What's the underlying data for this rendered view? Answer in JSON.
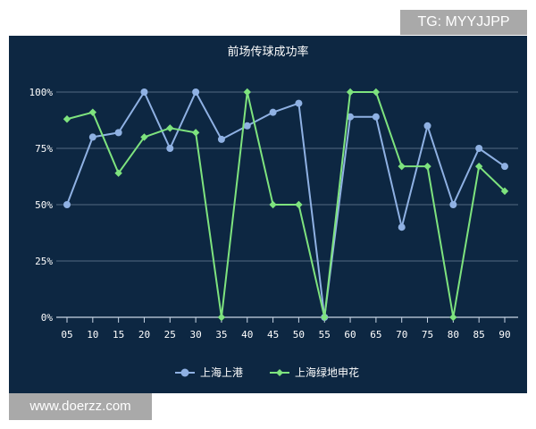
{
  "watermarks": {
    "top_right": "TG: MYYJJPP",
    "bottom_left": "www.doerzz.com"
  },
  "chart_data": {
    "type": "line",
    "title": "前场传球成功率",
    "xlabel": "",
    "ylabel": "",
    "x": [
      "05",
      "10",
      "15",
      "20",
      "25",
      "30",
      "35",
      "40",
      "45",
      "50",
      "55",
      "60",
      "65",
      "70",
      "75",
      "80",
      "85",
      "90"
    ],
    "yticks": [
      "0%",
      "25%",
      "50%",
      "75%",
      "100%"
    ],
    "ylim": [
      0,
      100
    ],
    "grid": true,
    "legend": "bottom-center",
    "series": [
      {
        "name": "上海上港",
        "color": "#8fb1e3",
        "marker": "circle",
        "values": [
          50,
          80,
          82,
          100,
          75,
          100,
          79,
          85,
          91,
          95,
          0,
          89,
          89,
          40,
          85,
          50,
          75,
          67
        ]
      },
      {
        "name": "上海绿地申花",
        "color": "#7ee37e",
        "marker": "diamond",
        "values": [
          88,
          91,
          64,
          80,
          84,
          82,
          0,
          100,
          50,
          50,
          0,
          100,
          100,
          67,
          67,
          0,
          67,
          56
        ]
      }
    ]
  }
}
